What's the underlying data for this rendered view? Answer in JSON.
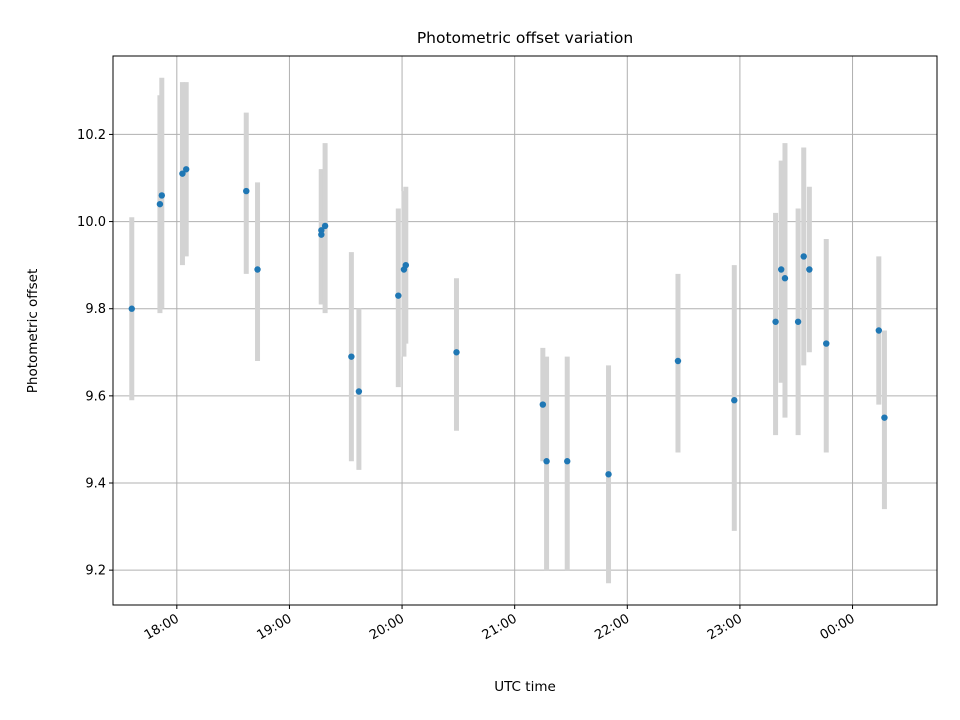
{
  "chart_data": {
    "type": "scatter",
    "title": "Photometric offset variation",
    "xlabel": "UTC time",
    "ylabel": "Photometric offset",
    "x_ticks": [
      "18:00",
      "19:00",
      "20:00",
      "21:00",
      "22:00",
      "23:00",
      "00:00"
    ],
    "y_ticks": [
      "9.2",
      "9.4",
      "9.6",
      "9.8",
      "10.0",
      "10.2"
    ],
    "xlim": [
      "17:26",
      "00:45"
    ],
    "ylim": [
      9.12,
      10.38
    ],
    "grid": true,
    "colors": {
      "point": "#1f77b4",
      "error_bar": "#d3d3d3",
      "grid": "#b0b0b0"
    },
    "points": [
      {
        "x": "17:36",
        "y": 9.8,
        "ylow": 9.59,
        "yhigh": 10.01
      },
      {
        "x": "17:51",
        "y": 10.04,
        "ylow": 9.79,
        "yhigh": 10.29
      },
      {
        "x": "17:52",
        "y": 10.06,
        "ylow": 9.8,
        "yhigh": 10.33
      },
      {
        "x": "18:03",
        "y": 10.11,
        "ylow": 9.9,
        "yhigh": 10.32
      },
      {
        "x": "18:05",
        "y": 10.12,
        "ylow": 9.92,
        "yhigh": 10.32
      },
      {
        "x": "18:37",
        "y": 10.07,
        "ylow": 9.88,
        "yhigh": 10.25
      },
      {
        "x": "18:43",
        "y": 9.89,
        "ylow": 9.68,
        "yhigh": 10.09
      },
      {
        "x": "19:17",
        "y": 9.98,
        "ylow": 9.81,
        "yhigh": 10.12
      },
      {
        "x": "19:17",
        "y": 9.97,
        "ylow": 9.81,
        "yhigh": 10.12
      },
      {
        "x": "19:19",
        "y": 9.99,
        "ylow": 9.79,
        "yhigh": 10.18
      },
      {
        "x": "19:33",
        "y": 9.69,
        "ylow": 9.45,
        "yhigh": 9.93
      },
      {
        "x": "19:37",
        "y": 9.61,
        "ylow": 9.43,
        "yhigh": 9.8
      },
      {
        "x": "19:58",
        "y": 9.83,
        "ylow": 9.62,
        "yhigh": 10.03
      },
      {
        "x": "20:01",
        "y": 9.89,
        "ylow": 9.69,
        "yhigh": 10.07
      },
      {
        "x": "20:02",
        "y": 9.9,
        "ylow": 9.72,
        "yhigh": 10.08
      },
      {
        "x": "20:29",
        "y": 9.7,
        "ylow": 9.52,
        "yhigh": 9.87
      },
      {
        "x": "21:15",
        "y": 9.58,
        "ylow": 9.45,
        "yhigh": 9.71
      },
      {
        "x": "21:17",
        "y": 9.45,
        "ylow": 9.2,
        "yhigh": 9.69
      },
      {
        "x": "21:28",
        "y": 9.45,
        "ylow": 9.2,
        "yhigh": 9.69
      },
      {
        "x": "21:50",
        "y": 9.42,
        "ylow": 9.17,
        "yhigh": 9.67
      },
      {
        "x": "22:27",
        "y": 9.68,
        "ylow": 9.47,
        "yhigh": 9.88
      },
      {
        "x": "22:57",
        "y": 9.59,
        "ylow": 9.29,
        "yhigh": 9.9
      },
      {
        "x": "23:19",
        "y": 9.77,
        "ylow": 9.51,
        "yhigh": 10.02
      },
      {
        "x": "23:22",
        "y": 9.89,
        "ylow": 9.63,
        "yhigh": 10.14
      },
      {
        "x": "23:24",
        "y": 9.87,
        "ylow": 9.55,
        "yhigh": 10.18
      },
      {
        "x": "23:31",
        "y": 9.77,
        "ylow": 9.51,
        "yhigh": 10.03
      },
      {
        "x": "23:34",
        "y": 9.92,
        "ylow": 9.67,
        "yhigh": 10.17
      },
      {
        "x": "23:37",
        "y": 9.89,
        "ylow": 9.7,
        "yhigh": 10.08
      },
      {
        "x": "23:46",
        "y": 9.72,
        "ylow": 9.47,
        "yhigh": 9.96
      },
      {
        "x": "00:14",
        "y": 9.75,
        "ylow": 9.58,
        "yhigh": 9.92
      },
      {
        "x": "00:17",
        "y": 9.55,
        "ylow": 9.34,
        "yhigh": 9.75
      }
    ]
  }
}
